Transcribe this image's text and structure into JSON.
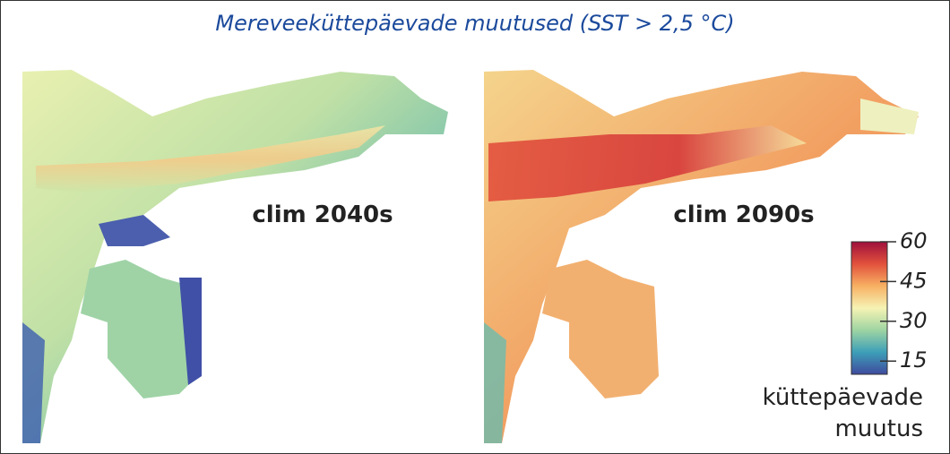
{
  "title": "Mereveeküttepäevade muutused (SST > 2,5 °C)",
  "panels": [
    {
      "label": "clim 2040s"
    },
    {
      "label": "clim 2090s"
    }
  ],
  "colorbar": {
    "lim": [
      10,
      60
    ],
    "ticks": [
      15,
      30,
      45,
      60
    ],
    "colors": [
      "#3f4a9e",
      "#3d9fb8",
      "#9ed4a2",
      "#f6f3b4",
      "#f7b063",
      "#e2513c",
      "#9e0f3c"
    ],
    "label": [
      "küttepäevade",
      "muutus"
    ]
  }
}
